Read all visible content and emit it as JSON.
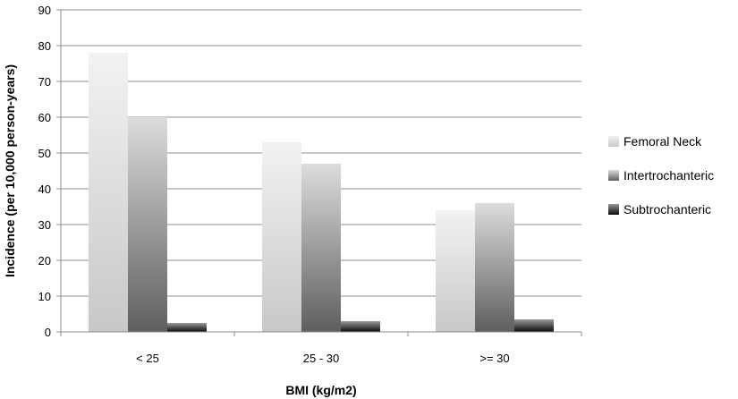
{
  "chart_data": {
    "type": "bar",
    "categories": [
      "< 25",
      "25 - 30",
      ">= 30"
    ],
    "series": [
      {
        "name": "Femoral Neck",
        "values": [
          78,
          53,
          34
        ],
        "color": "#dedede"
      },
      {
        "name": "Intertrochanteric",
        "values": [
          60,
          47,
          36
        ],
        "color": "#9a9a9a"
      },
      {
        "name": "Subtrochanteric",
        "values": [
          2.5,
          3,
          3.5
        ],
        "color": "#2a2a2a"
      }
    ],
    "xlabel": "BMI (kg/m2)",
    "ylabel": "Incidence (per 10,000 person-years)",
    "ylim": [
      0,
      90
    ],
    "yticks": [
      0,
      10,
      20,
      30,
      40,
      50,
      60,
      70,
      80,
      90
    ],
    "grid": true,
    "legend": "right"
  }
}
